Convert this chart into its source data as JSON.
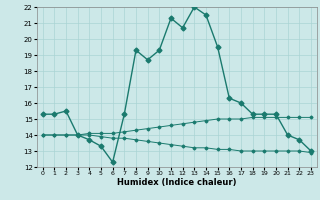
{
  "xlabel": "Humidex (Indice chaleur)",
  "bg_color": "#cce8e8",
  "line_color": "#1a7a6e",
  "grid_color": "#aad4d4",
  "xlim": [
    -0.5,
    23.5
  ],
  "ylim": [
    12,
    22
  ],
  "xticks": [
    0,
    1,
    2,
    3,
    4,
    5,
    6,
    7,
    8,
    9,
    10,
    11,
    12,
    13,
    14,
    15,
    16,
    17,
    18,
    19,
    20,
    21,
    22,
    23
  ],
  "yticks": [
    12,
    13,
    14,
    15,
    16,
    17,
    18,
    19,
    20,
    21,
    22
  ],
  "series": [
    {
      "x": [
        0,
        1,
        2,
        3,
        4,
        5,
        6,
        7,
        8,
        9,
        10,
        11,
        12,
        13,
        14,
        15,
        16,
        17,
        18,
        19,
        20,
        21,
        22,
        23
      ],
      "y": [
        15.3,
        15.3,
        15.5,
        14.0,
        13.7,
        13.3,
        12.3,
        15.3,
        19.3,
        18.7,
        19.3,
        21.3,
        20.7,
        22.0,
        21.5,
        19.5,
        16.3,
        16.0,
        15.3,
        15.3,
        15.3,
        14.0,
        13.7,
        13.0
      ],
      "lw": 1.0,
      "ms": 2.5
    },
    {
      "x": [
        0,
        1,
        2,
        3,
        4,
        5,
        6,
        7,
        8,
        9,
        10,
        11,
        12,
        13,
        14,
        15,
        16,
        17,
        18,
        19,
        20,
        21,
        22,
        23
      ],
      "y": [
        14.0,
        14.0,
        14.0,
        14.0,
        14.1,
        14.1,
        14.1,
        14.2,
        14.3,
        14.4,
        14.5,
        14.6,
        14.7,
        14.8,
        14.9,
        15.0,
        15.0,
        15.0,
        15.1,
        15.1,
        15.1,
        15.1,
        15.1,
        15.1
      ],
      "lw": 0.7,
      "ms": 1.5
    },
    {
      "x": [
        0,
        1,
        2,
        3,
        4,
        5,
        6,
        7,
        8,
        9,
        10,
        11,
        12,
        13,
        14,
        15,
        16,
        17,
        18,
        19,
        20,
        21,
        22,
        23
      ],
      "y": [
        14.0,
        14.0,
        14.0,
        14.0,
        14.0,
        13.9,
        13.8,
        13.8,
        13.7,
        13.6,
        13.5,
        13.4,
        13.3,
        13.2,
        13.2,
        13.1,
        13.1,
        13.0,
        13.0,
        13.0,
        13.0,
        13.0,
        13.0,
        12.9
      ],
      "lw": 0.7,
      "ms": 1.5
    }
  ]
}
